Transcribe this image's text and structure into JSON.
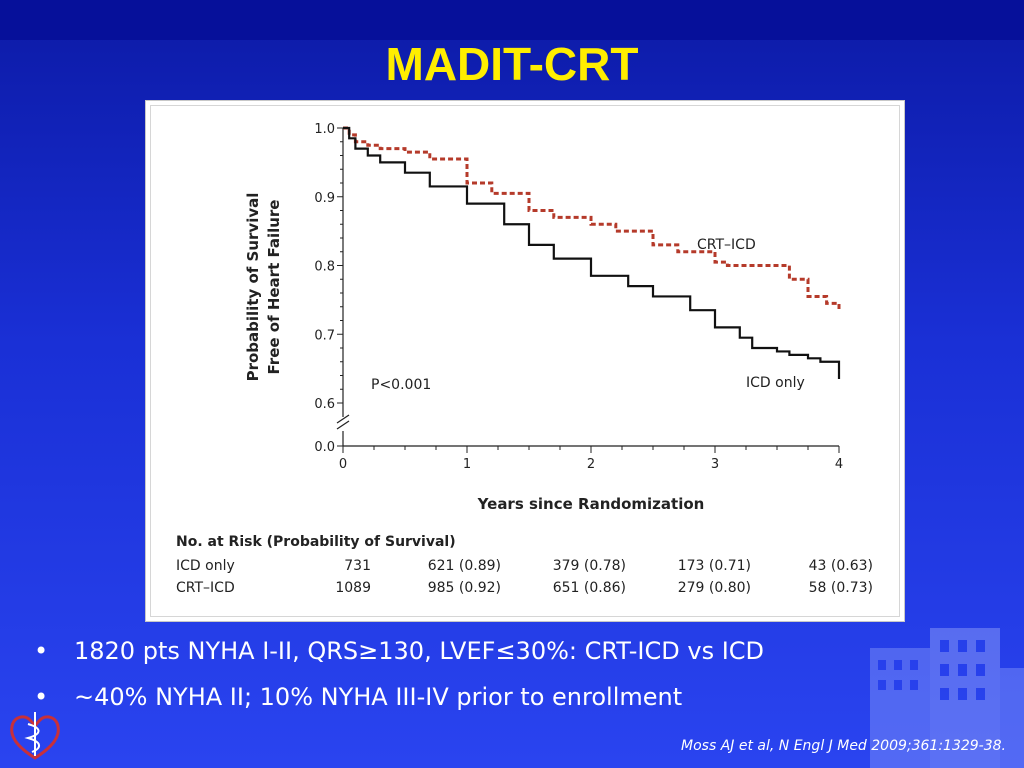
{
  "slide": {
    "title": "MADIT-CRT",
    "bullets": [
      "1820 pts NYHA I-II, QRS≥130, LVEF≤30%: CRT-ICD vs ICD",
      "~40% NYHA II; 10% NYHA III-IV prior to enrollment"
    ],
    "citation": "Moss AJ et al, N Engl J Med 2009;361:1329-38.",
    "logo_icon": "heart-caduceus-icon",
    "background_icon": "hospital-building-icon",
    "colors": {
      "title": "#ffee00",
      "background": "#1a30d6",
      "crt_icd": "#b53a2a",
      "icd_only": "#111111"
    }
  },
  "chart_data": {
    "type": "line",
    "title": "",
    "xlabel": "Years since Randomization",
    "ylabel_lines": [
      "Probability of Survival",
      "Free of Heart Failure"
    ],
    "xlim": [
      0,
      4
    ],
    "ylim": [
      0.6,
      1.0
    ],
    "x_ticks": [
      "0",
      "1",
      "2",
      "3",
      "4"
    ],
    "y_ticks": [
      "1.0",
      "0.9",
      "0.8",
      "0.7",
      "0.6"
    ],
    "y_break_label": "0.0",
    "annotation": "P<0.001",
    "series": [
      {
        "name": "CRT–ICD",
        "color": "#b53a2a",
        "dashed": true,
        "x": [
          0,
          0.05,
          0.1,
          0.2,
          0.3,
          0.5,
          0.7,
          1.0,
          1.2,
          1.5,
          1.7,
          2.0,
          2.2,
          2.5,
          2.7,
          3.0,
          3.1,
          3.3,
          3.5,
          3.6,
          3.75,
          3.9,
          4.0
        ],
        "y": [
          1.0,
          0.99,
          0.98,
          0.975,
          0.97,
          0.965,
          0.955,
          0.92,
          0.905,
          0.88,
          0.87,
          0.86,
          0.85,
          0.83,
          0.82,
          0.805,
          0.8,
          0.8,
          0.8,
          0.78,
          0.755,
          0.745,
          0.735
        ]
      },
      {
        "name": "ICD only",
        "color": "#111111",
        "dashed": false,
        "x": [
          0,
          0.05,
          0.1,
          0.2,
          0.3,
          0.5,
          0.7,
          1.0,
          1.3,
          1.5,
          1.7,
          2.0,
          2.3,
          2.5,
          2.8,
          3.0,
          3.2,
          3.3,
          3.5,
          3.6,
          3.75,
          3.85,
          3.95,
          4.0
        ],
        "y": [
          1.0,
          0.985,
          0.97,
          0.96,
          0.95,
          0.935,
          0.915,
          0.89,
          0.86,
          0.83,
          0.81,
          0.785,
          0.77,
          0.755,
          0.735,
          0.71,
          0.695,
          0.68,
          0.675,
          0.67,
          0.665,
          0.66,
          0.66,
          0.635
        ]
      }
    ],
    "risk_table": {
      "header": "No. at Risk (Probability of Survival)",
      "rows": [
        {
          "label": "ICD only",
          "values": [
            "731",
            "621 (0.89)",
            "379 (0.78)",
            "173 (0.71)",
            "43 (0.63)"
          ]
        },
        {
          "label": "CRT–ICD",
          "values": [
            "1089",
            "985 (0.92)",
            "651 (0.86)",
            "279 (0.80)",
            "58 (0.73)"
          ]
        }
      ]
    },
    "grid": false,
    "legend": "inline-labels"
  }
}
